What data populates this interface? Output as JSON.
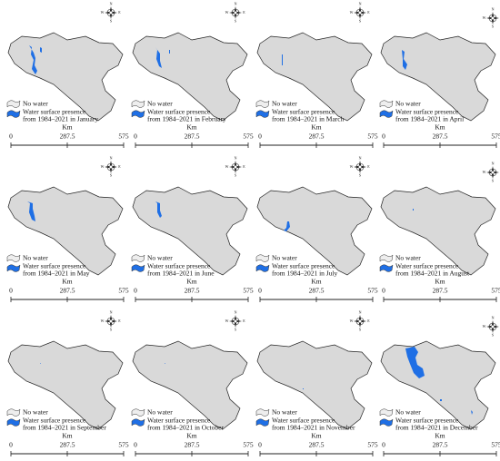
{
  "legend": {
    "no_water": "No water",
    "water_line1": "Water surface presence"
  },
  "panels": [
    {
      "period": "from 1984–2021 in January"
    },
    {
      "period": "from 1984–2021 in February"
    },
    {
      "period": "from 1984–2021 in March"
    },
    {
      "period": "from 1984–2021 in April"
    },
    {
      "period": "from 1984–2021 in May"
    },
    {
      "period": "from 1984–2021 in June"
    },
    {
      "period": "from 1984–2021 in July"
    },
    {
      "period": "from 1984–2021 in August"
    },
    {
      "period": "from 1984–2021 in September"
    },
    {
      "period": "from 1984–2021 in October"
    },
    {
      "period": "from 1984–2021 in November"
    },
    {
      "period": "from 1984–2021 in December"
    }
  ],
  "scale": {
    "labels": [
      "0",
      "287.5",
      "575"
    ],
    "unit": "Km"
  },
  "compass": {
    "n": "N",
    "e": "E",
    "s": "S",
    "w": "W"
  }
}
